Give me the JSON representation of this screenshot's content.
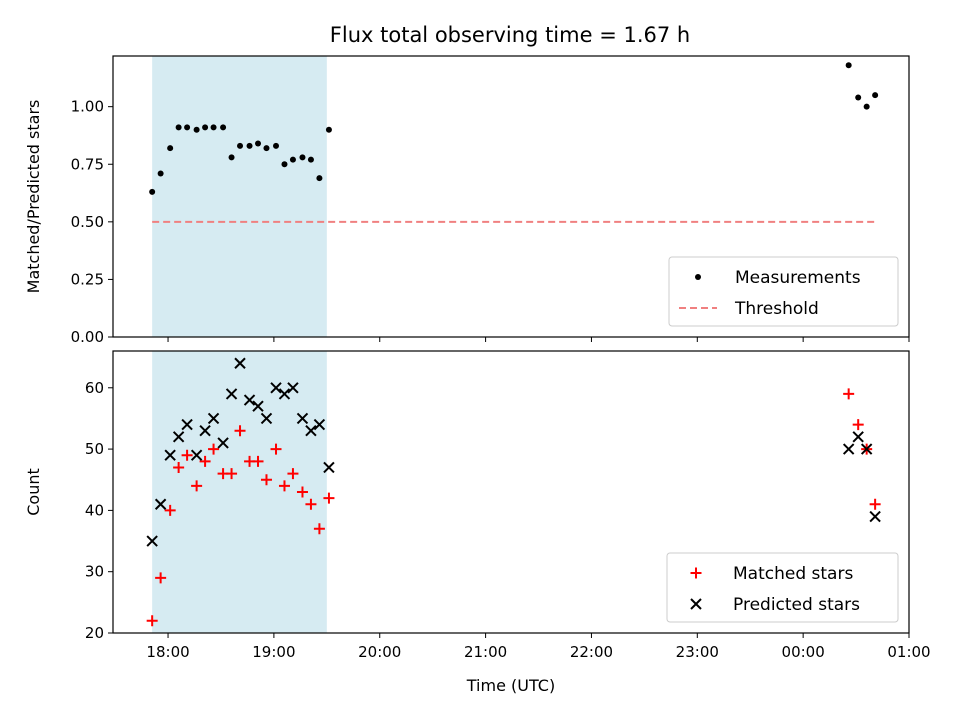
{
  "chart_data": {
    "title": "Flux total observing time = 1.67 h",
    "xlabel": "Time (UTC)",
    "x_tick_labels": [
      "18:00",
      "19:00",
      "20:00",
      "21:00",
      "22:00",
      "23:00",
      "00:00",
      "01:00"
    ],
    "x_range_hours": [
      17.48,
      25.0
    ],
    "shaded_interval_hours": [
      17.85,
      19.5
    ],
    "shade_color": "#add8e6",
    "panels": [
      {
        "type": "scatter",
        "ylabel": "Matched/Predicted stars",
        "ylim": [
          0.0,
          1.22
        ],
        "yticks": [
          "0.00",
          "0.25",
          "0.50",
          "0.75",
          "1.00"
        ],
        "legend_position": "lower-right",
        "series": [
          {
            "name": "Measurements",
            "marker": "dot",
            "color": "#000000",
            "x": [
              17.85,
              17.93,
              18.02,
              18.1,
              18.18,
              18.27,
              18.35,
              18.43,
              18.52,
              18.6,
              18.68,
              18.77,
              18.85,
              18.93,
              19.02,
              19.1,
              19.18,
              19.27,
              19.35,
              19.43,
              19.52,
              24.43,
              24.52,
              24.6,
              24.68
            ],
            "y": [
              0.63,
              0.71,
              0.82,
              0.91,
              0.91,
              0.9,
              0.91,
              0.91,
              0.91,
              0.78,
              0.83,
              0.83,
              0.84,
              0.82,
              0.83,
              0.75,
              0.77,
              0.78,
              0.77,
              0.69,
              0.9,
              1.18,
              1.04,
              1.0,
              1.05
            ]
          },
          {
            "name": "Threshold",
            "marker": "dashed-line",
            "color": "#f08080",
            "x": [
              17.85,
              24.68
            ],
            "y": [
              0.5,
              0.5
            ]
          }
        ]
      },
      {
        "type": "scatter",
        "ylabel": "Count",
        "ylim": [
          20,
          66
        ],
        "yticks": [
          "20",
          "30",
          "40",
          "50",
          "60"
        ],
        "legend_position": "lower-right",
        "series": [
          {
            "name": "Matched stars",
            "marker": "plus",
            "color": "#ff0000",
            "x": [
              17.85,
              17.93,
              18.02,
              18.1,
              18.18,
              18.27,
              18.35,
              18.43,
              18.52,
              18.6,
              18.68,
              18.77,
              18.85,
              18.93,
              19.02,
              19.1,
              19.18,
              19.27,
              19.35,
              19.43,
              19.52,
              24.43,
              24.52,
              24.6,
              24.68
            ],
            "y": [
              22,
              29,
              40,
              47,
              49,
              44,
              48,
              50,
              46,
              46,
              53,
              48,
              48,
              45,
              50,
              44,
              46,
              43,
              41,
              37,
              42,
              59,
              54,
              50,
              41
            ]
          },
          {
            "name": "Predicted stars",
            "marker": "x",
            "color": "#000000",
            "x": [
              17.85,
              17.93,
              18.02,
              18.1,
              18.18,
              18.27,
              18.35,
              18.43,
              18.52,
              18.6,
              18.68,
              18.77,
              18.85,
              18.93,
              19.02,
              19.1,
              19.18,
              19.27,
              19.35,
              19.43,
              19.52,
              24.43,
              24.52,
              24.6,
              24.68
            ],
            "y": [
              35,
              41,
              49,
              52,
              54,
              49,
              53,
              55,
              51,
              59,
              64,
              58,
              57,
              55,
              60,
              59,
              60,
              55,
              53,
              54,
              47,
              50,
              52,
              50,
              39
            ]
          }
        ]
      }
    ]
  }
}
